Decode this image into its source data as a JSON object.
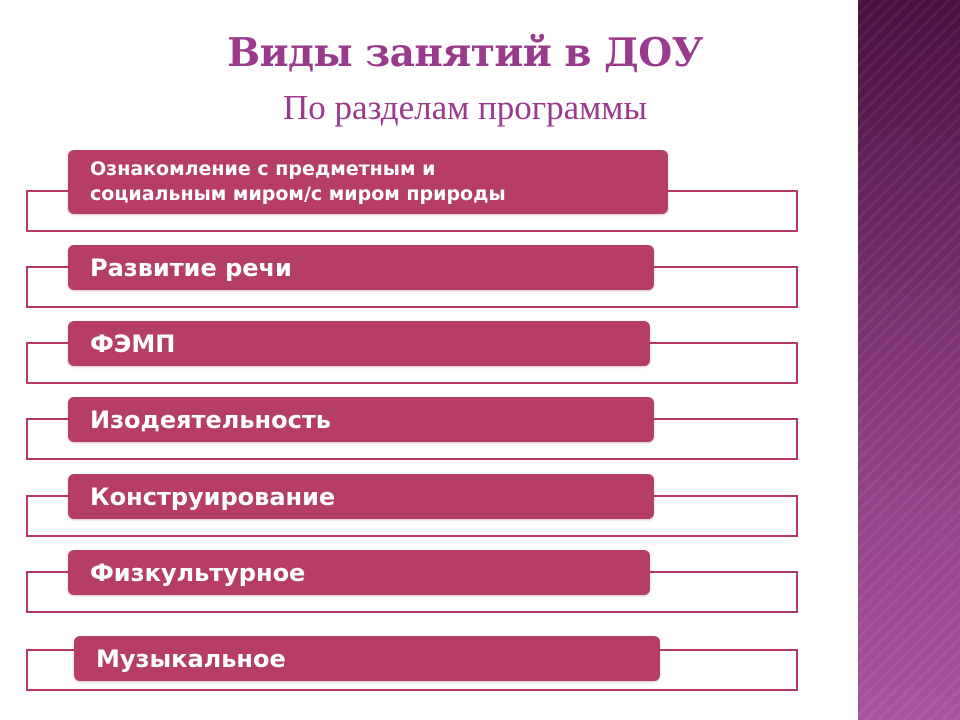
{
  "slide": {
    "title": "Виды занятий в ДОУ",
    "subtitle": "По разделам программы"
  },
  "items": [
    {
      "label": "Ознакомление с предметным и\nсоциальным миром/с миром природы"
    },
    {
      "label": "Развитие речи"
    },
    {
      "label": "ФЭМП"
    },
    {
      "label": "Изодеятельность"
    },
    {
      "label": "Конструирование"
    },
    {
      "label": "Физкультурное"
    },
    {
      "label": "Музыкальное"
    }
  ],
  "colors": {
    "title": "#9a3a8c",
    "box_fill": "#b53d67",
    "box_text": "#ffffff",
    "frame_border": "#b6386a",
    "side_band_top": "#4a0f3e",
    "side_band_bottom": "#a853a0"
  }
}
